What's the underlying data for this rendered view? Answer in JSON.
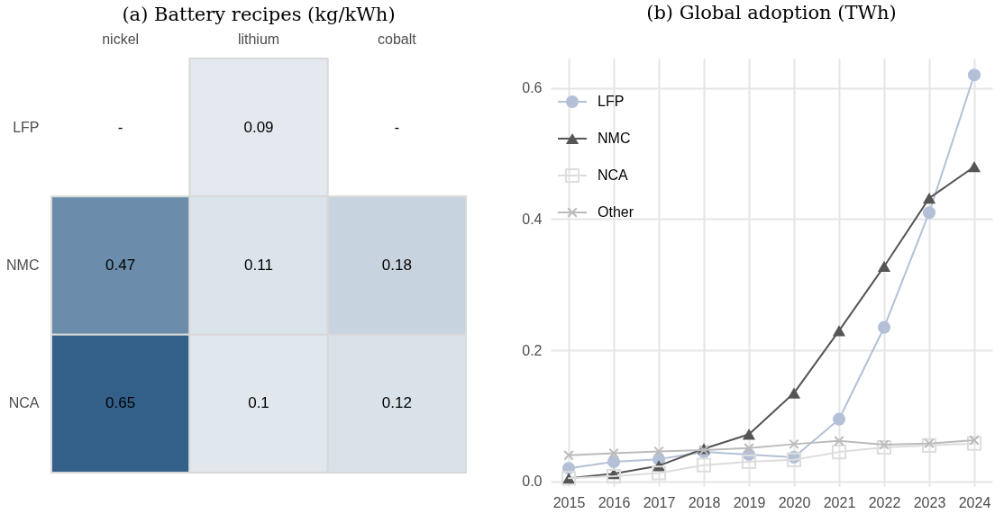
{
  "chart_data": [
    {
      "type": "heatmap",
      "title": "(a) Battery recipes (kg/kWh)",
      "categories": [
        "nickel",
        "lithium",
        "cobalt"
      ],
      "y_categories": [
        "LFP",
        "NMC",
        "NCA"
      ],
      "cells": [
        [
          null,
          0.09,
          null
        ],
        [
          0.47,
          0.11,
          0.18
        ],
        [
          0.65,
          0.1,
          0.12
        ]
      ],
      "cell_labels": [
        [
          "-",
          "0.09",
          "-"
        ],
        [
          "0.47",
          "0.11",
          "0.18"
        ],
        [
          "0.65",
          "0.1",
          "0.12"
        ]
      ],
      "colors": [
        "#ffffff",
        "#336089"
      ]
    },
    {
      "type": "line",
      "title": "(b) Global adoption (TWh)",
      "x": [
        2015,
        2016,
        2017,
        2018,
        2019,
        2020,
        2021,
        2022,
        2023,
        2024
      ],
      "series": [
        {
          "name": "LFP",
          "color": "#b4c0d8",
          "marker": "circle",
          "values": [
            0.02,
            0.03,
            0.034,
            0.045,
            0.041,
            0.037,
            0.095,
            0.235,
            0.41,
            0.62
          ]
        },
        {
          "name": "NMC",
          "color": "#555555",
          "marker": "triangle",
          "values": [
            0.005,
            0.012,
            0.024,
            0.05,
            0.072,
            0.135,
            0.23,
            0.328,
            0.432,
            0.48
          ]
        },
        {
          "name": "NCA",
          "color": "#dddddd",
          "marker": "square",
          "values": [
            0.005,
            0.008,
            0.013,
            0.025,
            0.03,
            0.033,
            0.045,
            0.052,
            0.055,
            0.058
          ]
        },
        {
          "name": "Other",
          "color": "#bbbbbb",
          "marker": "cross",
          "values": [
            0.04,
            0.043,
            0.046,
            0.048,
            0.051,
            0.057,
            0.062,
            0.056,
            0.058,
            0.063
          ]
        }
      ],
      "xlim": [
        2014.6,
        2024.4
      ],
      "xticks": [
        {
          "value": 2015,
          "label": "2015"
        },
        {
          "value": 2016,
          "label": "2016"
        },
        {
          "value": 2017,
          "label": "2017"
        },
        {
          "value": 2018,
          "label": "2018"
        },
        {
          "value": 2019,
          "label": "2019"
        },
        {
          "value": 2020,
          "label": "2020"
        },
        {
          "value": 2021,
          "label": "2021"
        },
        {
          "value": 2022,
          "label": "2022"
        },
        {
          "value": 2023,
          "label": "2023"
        },
        {
          "value": 2024,
          "label": "2024"
        }
      ],
      "ylim": [
        -0.007,
        0.645
      ],
      "yticks": [
        {
          "value": 0,
          "label": "0.0"
        },
        {
          "value": 0.2,
          "label": "0.2"
        },
        {
          "value": 0.4,
          "label": "0.4"
        },
        {
          "value": 0.6,
          "label": "0.6"
        }
      ],
      "grid": true,
      "legend": "top left"
    }
  ]
}
